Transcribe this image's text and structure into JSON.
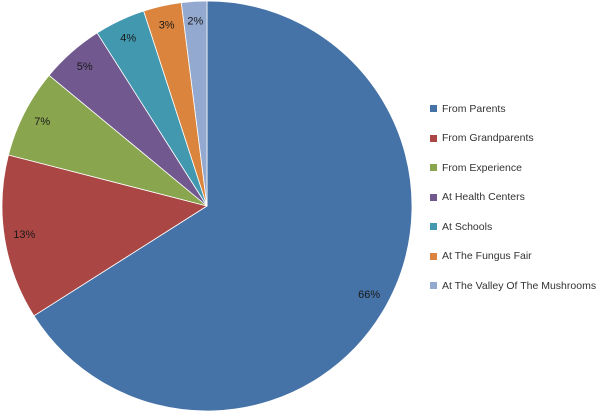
{
  "chart_data": {
    "type": "pie",
    "title": "",
    "legend_position": "right",
    "slices": [
      {
        "label": "From Parents",
        "value": 66,
        "value_label": "66%",
        "color": "#4572A7"
      },
      {
        "label": "From Grandparents",
        "value": 13,
        "value_label": "13%",
        "color": "#AA4643"
      },
      {
        "label": "From Experience",
        "value": 7,
        "value_label": "7%",
        "color": "#89A54E"
      },
      {
        "label": "At Health Centers",
        "value": 5,
        "value_label": "5%",
        "color": "#71588F"
      },
      {
        "label": "At Schools",
        "value": 4,
        "value_label": "4%",
        "color": "#4198AF"
      },
      {
        "label": "At The Fungus Fair",
        "value": 3,
        "value_label": "3%",
        "color": "#DB843D"
      },
      {
        "label": "At The Valley Of The Mushrooms",
        "value": 2,
        "value_label": "2%",
        "color": "#93A9CF"
      }
    ]
  }
}
